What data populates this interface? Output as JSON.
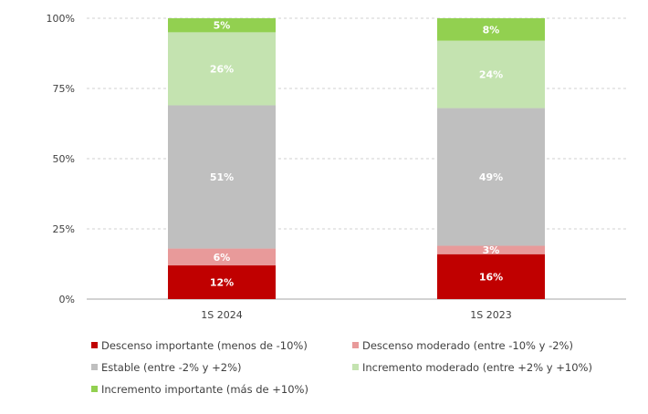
{
  "chart_data": {
    "type": "bar",
    "stacked": true,
    "categories": [
      "1S 2024",
      "1S 2023"
    ],
    "ylim": [
      0,
      100
    ],
    "yticks": [
      "0%",
      "25%",
      "50%",
      "75%",
      "100%"
    ],
    "ytick_values": [
      0,
      25,
      50,
      75,
      100
    ],
    "grid": true,
    "legend_position": "bottom",
    "series": [
      {
        "name": "Descenso importante (menos de -10%)",
        "values": [
          12,
          16
        ],
        "labels": [
          "12%",
          "16%"
        ],
        "color": "#c00000",
        "label_color": "#ffffff"
      },
      {
        "name": "Descenso moderado (entre -10% y -2%)",
        "values": [
          6,
          3
        ],
        "labels": [
          "6%",
          "3%"
        ],
        "color": "#e89a9a",
        "label_color": "#ffffff"
      },
      {
        "name": "Estable (entre -2% y +2%)",
        "values": [
          51,
          49
        ],
        "labels": [
          "51%",
          "49%"
        ],
        "color": "#bfbfbf",
        "label_color": "#ffffff"
      },
      {
        "name": "Incremento moderado (entre +2% y +10%)",
        "values": [
          26,
          24
        ],
        "labels": [
          "26%",
          "24%"
        ],
        "color": "#c4e3b0",
        "label_color": "#ffffff"
      },
      {
        "name": "Incremento importante (más de +10%)",
        "values": [
          5,
          8
        ],
        "labels": [
          "5%",
          "8%"
        ],
        "color": "#92d050",
        "label_color": "#ffffff"
      }
    ]
  }
}
